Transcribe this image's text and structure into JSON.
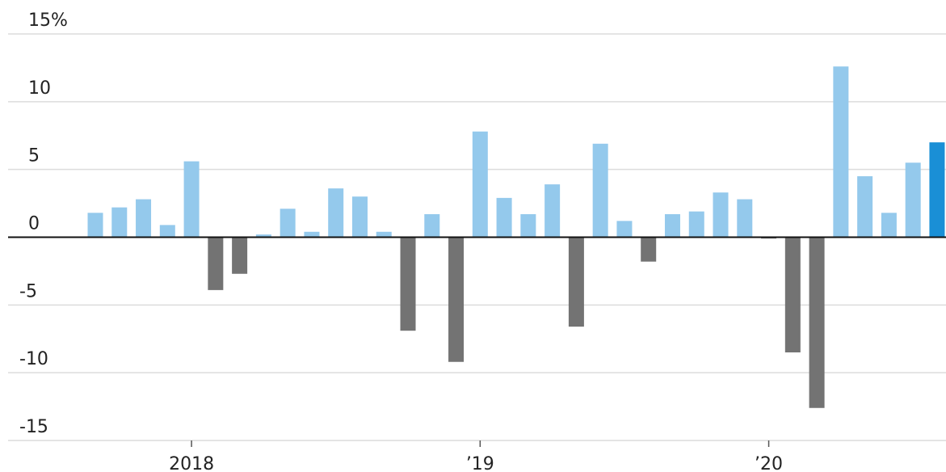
{
  "chart_data": {
    "type": "bar",
    "categories": [
      null,
      null,
      null,
      null,
      "2018",
      null,
      null,
      null,
      null,
      null,
      null,
      null,
      null,
      null,
      null,
      null,
      "’19",
      null,
      null,
      null,
      null,
      null,
      null,
      null,
      null,
      null,
      null,
      null,
      "’20",
      null,
      null,
      null,
      null,
      null,
      null,
      null
    ],
    "values": [
      1.8,
      2.2,
      2.8,
      0.9,
      5.6,
      -3.9,
      -2.7,
      0.2,
      2.1,
      0.4,
      3.6,
      3.0,
      0.4,
      -6.9,
      1.7,
      -9.2,
      7.8,
      2.9,
      1.7,
      3.9,
      -6.6,
      6.9,
      1.2,
      -1.8,
      1.7,
      1.9,
      3.3,
      2.8,
      -0.1,
      -8.5,
      -12.6,
      12.6,
      4.5,
      1.8,
      5.5,
      7.0
    ],
    "colors": [
      "#94c9ec",
      "#94c9ec",
      "#94c9ec",
      "#94c9ec",
      "#94c9ec",
      "#737373",
      "#737373",
      "#94c9ec",
      "#94c9ec",
      "#94c9ec",
      "#94c9ec",
      "#94c9ec",
      "#94c9ec",
      "#737373",
      "#94c9ec",
      "#737373",
      "#94c9ec",
      "#94c9ec",
      "#94c9ec",
      "#94c9ec",
      "#737373",
      "#94c9ec",
      "#94c9ec",
      "#737373",
      "#94c9ec",
      "#94c9ec",
      "#94c9ec",
      "#94c9ec",
      "#737373",
      "#737373",
      "#737373",
      "#94c9ec",
      "#94c9ec",
      "#94c9ec",
      "#94c9ec",
      "#1a8fd6"
    ],
    "ylim": [
      -15,
      15
    ],
    "yticks": [
      -15,
      -10,
      -5,
      0,
      5,
      10,
      {
        "value": 15,
        "label": "15%"
      }
    ],
    "grid": true
  }
}
